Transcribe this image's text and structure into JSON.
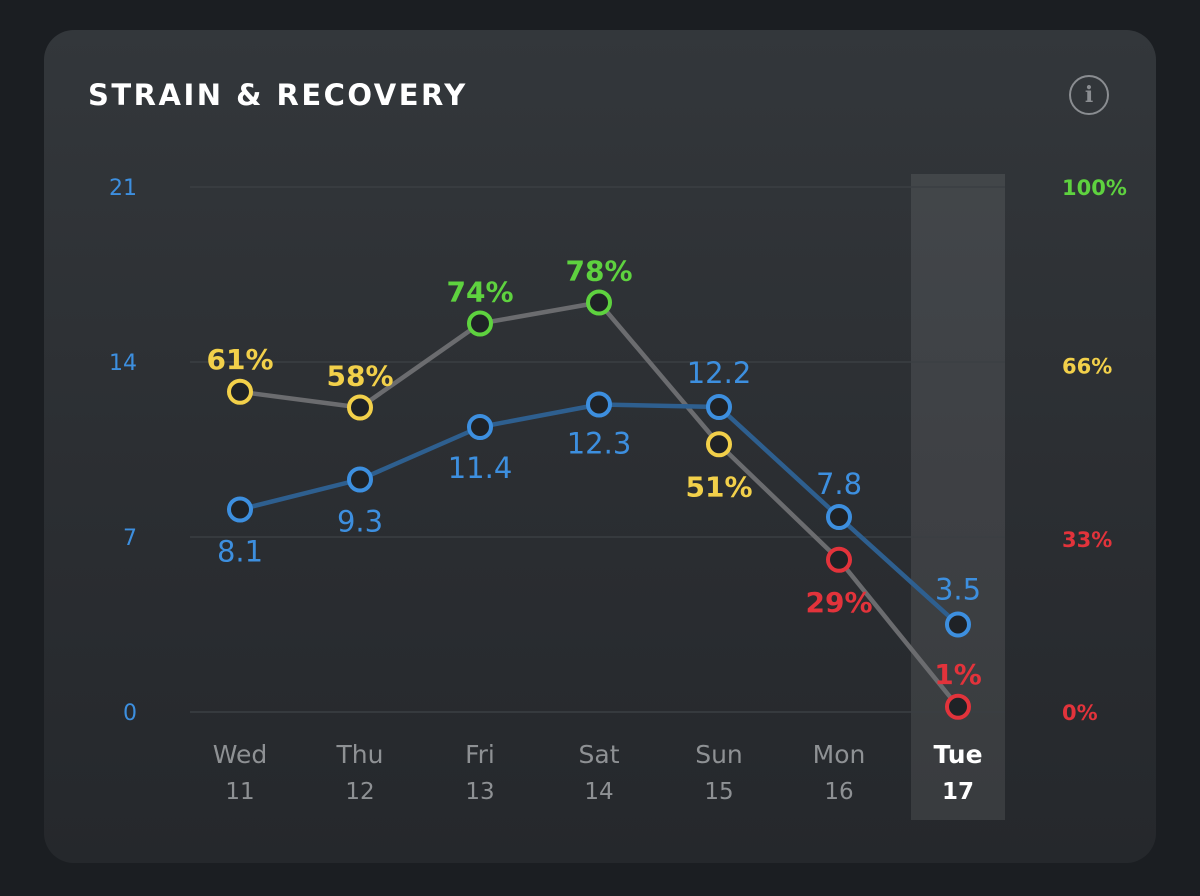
{
  "header": {
    "title": "STRAIN & RECOVERY",
    "info_icon": "i"
  },
  "colors": {
    "strain": "#3d8fdf",
    "recovery_line": "#6b6c6f",
    "recovery_green": "#5ed23f",
    "recovery_yellow": "#f2d04a",
    "recovery_red": "#e2333b",
    "grid": "#3b3f43",
    "axis_tick": "#8e9194",
    "selected_label": "#ffffff",
    "card_background": "#2e3135"
  },
  "chart_data": {
    "type": "line",
    "title": "STRAIN & RECOVERY",
    "categories": [
      {
        "day": "Wed",
        "date": "11"
      },
      {
        "day": "Thu",
        "date": "12"
      },
      {
        "day": "Fri",
        "date": "13"
      },
      {
        "day": "Sat",
        "date": "14"
      },
      {
        "day": "Sun",
        "date": "15"
      },
      {
        "day": "Mon",
        "date": "16"
      },
      {
        "day": "Tue",
        "date": "17"
      }
    ],
    "selected_index": 6,
    "left_axis": {
      "ylim": [
        0,
        21
      ],
      "ticks": [
        {
          "value": 21,
          "label": "21"
        },
        {
          "value": 14,
          "label": "14"
        },
        {
          "value": 7,
          "label": "7"
        },
        {
          "value": 0,
          "label": "0"
        }
      ]
    },
    "right_axis": {
      "ylim": [
        0,
        100
      ],
      "ticks": [
        {
          "value": 100,
          "label": "100%",
          "color": "green"
        },
        {
          "value": 66,
          "label": "66%",
          "color": "yellow"
        },
        {
          "value": 33,
          "label": "33%",
          "color": "red"
        },
        {
          "value": 0,
          "label": "0%",
          "color": "red"
        }
      ]
    },
    "series": [
      {
        "axis": "left",
        "values": [
          8.1,
          9.3,
          11.4,
          12.3,
          12.2,
          7.8,
          3.5
        ],
        "labels": [
          "8.1",
          "9.3",
          "11.4",
          "12.3",
          "12.2",
          "7.8",
          "3.5"
        ]
      },
      {
        "axis": "right",
        "values": [
          61,
          58,
          74,
          78,
          51,
          29,
          1
        ],
        "labels": [
          "61%",
          "58%",
          "74%",
          "78%",
          "51%",
          "29%",
          "1%"
        ],
        "point_colors": [
          "yellow",
          "yellow",
          "green",
          "green",
          "yellow",
          "red",
          "red"
        ]
      }
    ],
    "grid": true
  }
}
